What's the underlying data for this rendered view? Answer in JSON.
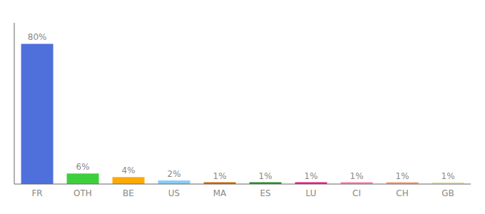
{
  "chart_data": {
    "type": "bar",
    "categories": [
      "FR",
      "OTH",
      "BE",
      "US",
      "MA",
      "ES",
      "LU",
      "CI",
      "CH",
      "GB"
    ],
    "values": [
      80,
      6,
      4,
      2,
      1,
      1,
      1,
      1,
      1,
      1
    ],
    "value_labels": [
      "80%",
      "6%",
      "4%",
      "2%",
      "1%",
      "1%",
      "1%",
      "1%",
      "1%",
      "1%"
    ],
    "colors": [
      "#4f6fdb",
      "#3ecf3e",
      "#ffaa00",
      "#87cefa",
      "#cc6600",
      "#228b22",
      "#e8197a",
      "#ff80b0",
      "#f4a07a",
      "#e8e8c0"
    ],
    "ylim": [
      0,
      92
    ],
    "data_labels": true,
    "tick_labels": "x"
  }
}
